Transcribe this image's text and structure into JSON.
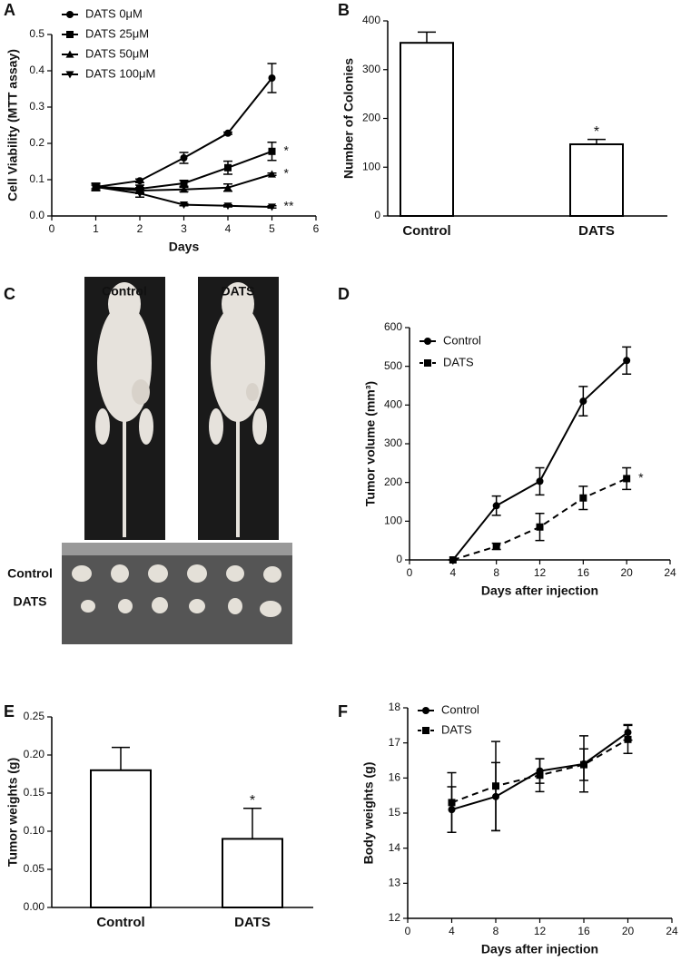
{
  "chart_data": [
    {
      "type": "line",
      "panel": "A",
      "xlabel": "Days",
      "ylabel": "Cell Viability (MTT assay)",
      "x": [
        1,
        2,
        3,
        4,
        5
      ],
      "xlim": [
        0,
        6
      ],
      "xticks": [
        0,
        1,
        2,
        3,
        4,
        5,
        6
      ],
      "ylim": [
        0,
        0.5
      ],
      "yticks": [
        {
          "value": 0,
          "label": "0.0"
        },
        0.1,
        0.2,
        0.3,
        0.4,
        0.5
      ],
      "series": [
        {
          "name": "DATS 0μM",
          "color": "#000000",
          "marker": "circle",
          "dash": false,
          "values": [
            0.08,
            0.097,
            0.16,
            0.228,
            0.38
          ],
          "errors": [
            0.005,
            0.005,
            0.015,
            0.003,
            0.04
          ]
        },
        {
          "name": "DATS 25μM",
          "color": "#000000",
          "marker": "square",
          "dash": false,
          "values": [
            0.08,
            0.075,
            0.09,
            0.133,
            0.178
          ],
          "errors": [
            0.01,
            0.01,
            0.008,
            0.018,
            0.025
          ],
          "annotation": "*"
        },
        {
          "name": "DATS 50μM",
          "color": "#000000",
          "marker": "triangle-up",
          "dash": false,
          "values": [
            0.08,
            0.07,
            0.073,
            0.078,
            0.115
          ],
          "errors": [
            0.01,
            0.008,
            0.006,
            0.01,
            0.003
          ],
          "annotation": "*"
        },
        {
          "name": "DATS 100μM",
          "color": "#000000",
          "marker": "triangle-down",
          "dash": false,
          "values": [
            0.08,
            0.062,
            0.031,
            0.028,
            0.025
          ],
          "errors": [
            0.01,
            0.01,
            0.003,
            0.003,
            0.003
          ],
          "annotation": "**"
        }
      ]
    },
    {
      "type": "bar",
      "panel": "B",
      "ylabel": "Number of Colonies",
      "categories": [
        "Control",
        "DATS"
      ],
      "values": [
        355,
        147
      ],
      "errors": [
        22,
        10
      ],
      "annotations": [
        null,
        "*"
      ],
      "color": "#ffffff",
      "ylim": [
        0,
        400
      ],
      "yticks": [
        0,
        100,
        200,
        300,
        400
      ]
    },
    {
      "type": "image",
      "panel": "C",
      "columns": [
        "Control",
        "DATS"
      ],
      "rows": [
        "Control",
        "DATS"
      ]
    },
    {
      "type": "line",
      "panel": "D",
      "xlabel": "Days after injection",
      "ylabel": "Tumor volume (mm³)",
      "x": [
        4,
        8,
        12,
        16,
        20
      ],
      "xlim": [
        0,
        24
      ],
      "xticks": [
        0,
        4,
        8,
        12,
        16,
        20,
        24
      ],
      "ylim": [
        0,
        600
      ],
      "yticks": [
        0,
        100,
        200,
        300,
        400,
        500,
        600
      ],
      "series": [
        {
          "name": "Control",
          "color": "#000000",
          "marker": "circle",
          "dash": false,
          "values": [
            0,
            140,
            203,
            410,
            515
          ],
          "errors": [
            0,
            25,
            35,
            38,
            35
          ]
        },
        {
          "name": "DATS",
          "color": "#000000",
          "marker": "square",
          "dash": true,
          "values": [
            0,
            35,
            85,
            160,
            210
          ],
          "errors": [
            0,
            8,
            35,
            30,
            28
          ],
          "annotation": "*"
        }
      ]
    },
    {
      "type": "bar",
      "panel": "E",
      "ylabel": "Tumor weights (g)",
      "categories": [
        "Control",
        "DATS"
      ],
      "values": [
        0.18,
        0.09
      ],
      "errors": [
        0.03,
        0.04
      ],
      "annotations": [
        null,
        "*"
      ],
      "color": "#ffffff",
      "ylim": [
        0,
        0.25
      ],
      "yticks": [
        {
          "value": 0,
          "label": "0.00"
        },
        {
          "value": 0.05,
          "label": "0.05"
        },
        {
          "value": 0.1,
          "label": "0.10"
        },
        {
          "value": 0.15,
          "label": "0.15"
        },
        {
          "value": 0.2,
          "label": "0.20"
        },
        {
          "value": 0.25,
          "label": "0.25"
        }
      ]
    },
    {
      "type": "line",
      "panel": "F",
      "xlabel": "Days after injection",
      "ylabel": "Body weights (g)",
      "x": [
        4,
        8,
        12,
        16,
        20
      ],
      "xlim": [
        0,
        24
      ],
      "xticks": [
        0,
        4,
        8,
        12,
        16,
        20,
        24
      ],
      "ylim": [
        12,
        18
      ],
      "yticks": [
        12,
        13,
        14,
        15,
        16,
        17,
        18
      ],
      "series": [
        {
          "name": "Control",
          "color": "#000000",
          "marker": "circle",
          "dash": false,
          "values": [
            15.1,
            15.47,
            16.2,
            16.4,
            17.3
          ],
          "errors": [
            0.65,
            0.97,
            0.35,
            0.8,
            0.22
          ]
        },
        {
          "name": "DATS",
          "color": "#000000",
          "marker": "square",
          "dash": true,
          "values": [
            15.3,
            15.77,
            16.08,
            16.38,
            17.1
          ],
          "errors": [
            0.85,
            1.27,
            0.47,
            0.45,
            0.4
          ]
        }
      ]
    }
  ]
}
